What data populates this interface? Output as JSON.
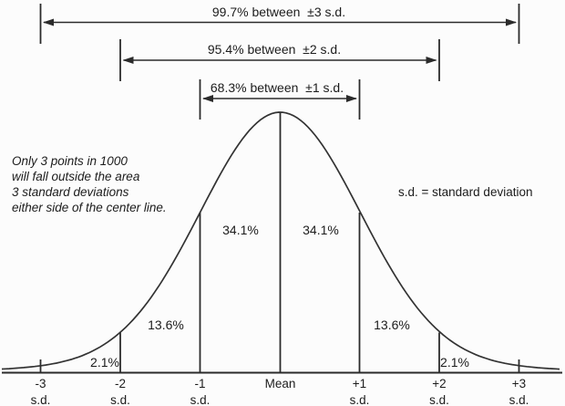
{
  "figure": {
    "background": "#fcfcfc",
    "line_color": "#2b2b2b",
    "text_color": "#1c1c1c"
  },
  "brackets": [
    {
      "label": "99.7% between  ±3 s.d."
    },
    {
      "label": "95.4% between  ±2 s.d."
    },
    {
      "label": "68.3% between  ±1 s.d."
    }
  ],
  "note": {
    "lines": [
      "Only 3 points in 1000",
      "will fall outside the area",
      "3 standard deviations",
      "either side of the center line."
    ]
  },
  "legend": {
    "text": "s.d. = standard deviation"
  },
  "area_labels": {
    "left_34": "34.1%",
    "right_34": "34.1%",
    "left_13": "13.6%",
    "right_13": "13.6%",
    "left_2": "2.1%",
    "right_2": "2.1%"
  },
  "axis": {
    "ticks": [
      {
        "value": "-3",
        "unit": "s.d."
      },
      {
        "value": "-2",
        "unit": "s.d."
      },
      {
        "value": "-1",
        "unit": "s.d."
      },
      {
        "value": "Mean",
        "unit": ""
      },
      {
        "value": "+1",
        "unit": "s.d."
      },
      {
        "value": "+2",
        "unit": "s.d."
      },
      {
        "value": "+3",
        "unit": "s.d."
      }
    ]
  },
  "chart_data": {
    "type": "area",
    "description": "Normal (Gaussian) distribution bell curve divided at standard deviation boundaries, showing the empirical rule",
    "x_ticks": [
      "-3 s.d.",
      "-2 s.d.",
      "-1 s.d.",
      "Mean",
      "+1 s.d.",
      "+2 s.d.",
      "+3 s.d."
    ],
    "segments": [
      {
        "range": "-3 to -2 s.d.",
        "percent": 2.1
      },
      {
        "range": "-2 to -1 s.d.",
        "percent": 13.6
      },
      {
        "range": "-1 s.d. to Mean",
        "percent": 34.1
      },
      {
        "range": "Mean to +1 s.d.",
        "percent": 34.1
      },
      {
        "range": "+1 to +2 s.d.",
        "percent": 13.6
      },
      {
        "range": "+2 to +3 s.d.",
        "percent": 2.1
      }
    ],
    "coverage": [
      {
        "interval": "±1 s.d.",
        "percent": 68.3
      },
      {
        "interval": "±2 s.d.",
        "percent": 95.4
      },
      {
        "interval": "±3 s.d.",
        "percent": 99.7
      }
    ],
    "annotations": [
      "Only 3 points in 1000 will fall outside the area 3 standard deviations either side of the center line.",
      "s.d. = standard deviation"
    ],
    "grid": false,
    "legend_position": "right-middle"
  }
}
